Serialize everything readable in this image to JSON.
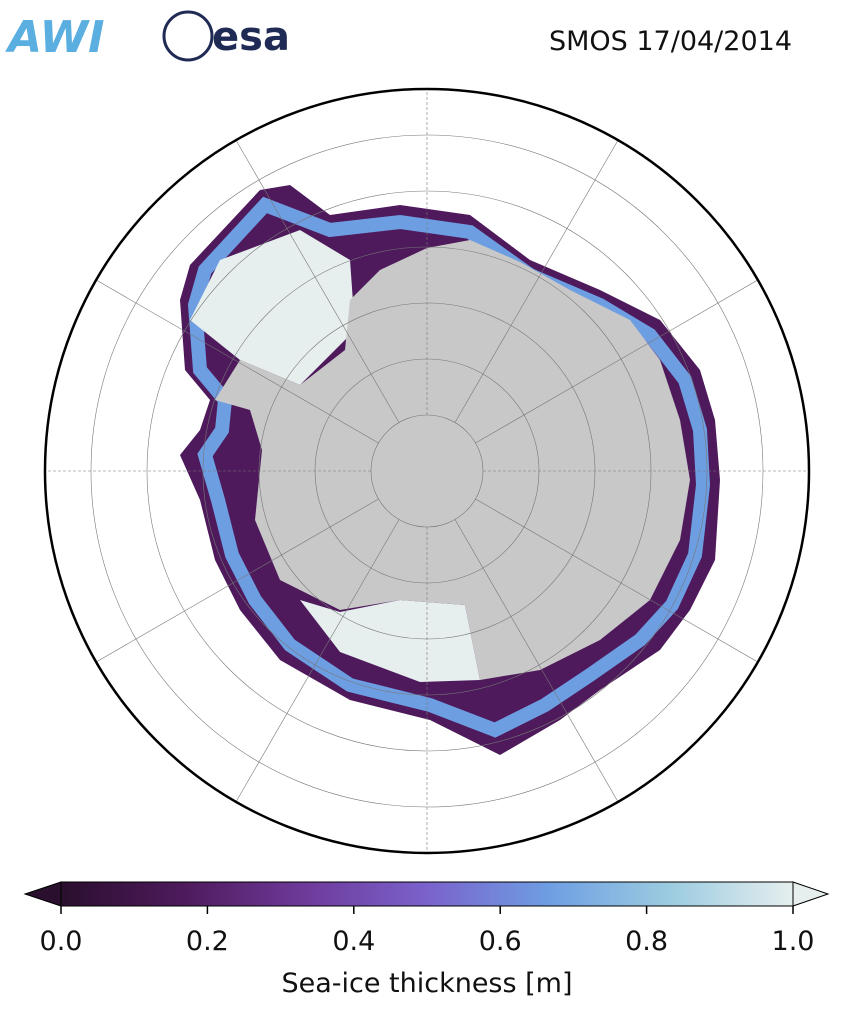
{
  "header": {
    "logos": [
      "AWI",
      "esa"
    ],
    "title": "SMOS 17/04/2014"
  },
  "colorbar": {
    "label": "Sea-ice thickness [m]",
    "lim": [
      0,
      1
    ],
    "ticks": [
      {
        "value": 0,
        "label": "0.0"
      },
      0.2,
      0.4,
      0.6,
      0.8,
      {
        "value": 1,
        "label": "1.0"
      }
    ],
    "colormap": [
      "#2a0f2e",
      "#4e1a5c",
      "#6e3a9a",
      "#7a62cc",
      "#6e9ee2",
      "#9ccce0",
      "#e6eeee"
    ]
  }
}
